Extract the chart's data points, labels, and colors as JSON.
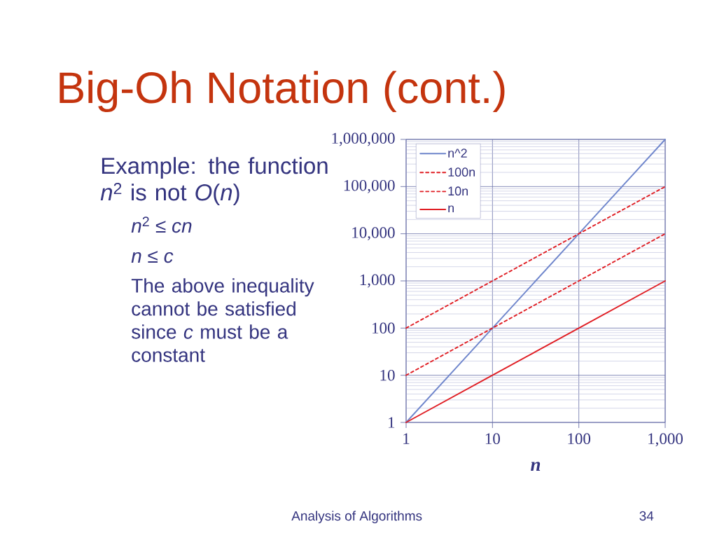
{
  "chart_data": {
    "type": "line",
    "title": "Big-Oh Notation (cont.)",
    "xlabel": "n",
    "x": [
      1,
      10,
      100,
      1000
    ],
    "series": [
      {
        "name": "n^2",
        "color": "#6f86cc",
        "values": [
          1,
          100,
          10000,
          1000000
        ],
        "line_style": "solid"
      },
      {
        "name": "100n",
        "color": "#e01e24",
        "values": [
          100,
          1000,
          10000,
          100000
        ],
        "line_style": "dashed"
      },
      {
        "name": "10n",
        "color": "#e01e24",
        "values": [
          10,
          100,
          1000,
          10000
        ],
        "line_style": "dashed"
      },
      {
        "name": "n",
        "color": "#e01e24",
        "values": [
          1,
          10,
          100,
          1000
        ],
        "line_style": "solid"
      }
    ],
    "log": "xy",
    "xlim": [
      1,
      1000
    ],
    "ylim": [
      1,
      1000000
    ],
    "xticks": [
      1,
      10,
      100,
      {
        "value": 1000,
        "label": "1,000"
      }
    ],
    "yticks": [
      1,
      10,
      100,
      {
        "value": 1000,
        "label": "1,000"
      },
      {
        "value": 10000,
        "label": "10,000"
      },
      {
        "value": 100000,
        "label": "100,000"
      },
      {
        "value": 1000000,
        "label": "1,000,000"
      }
    ],
    "grid": true,
    "legend": "top left",
    "marker": "none",
    "annotations": [
      "Example: the function *n*$^{2}$ is not *O*(*n*)",
      "*n*$^{2}$ ≤ *cn*",
      "*n* ≤ *c*",
      "The above inequality cannot be satisfied since *c* must be a constant",
      "Analysis of Algorithms",
      "34"
    ]
  }
}
